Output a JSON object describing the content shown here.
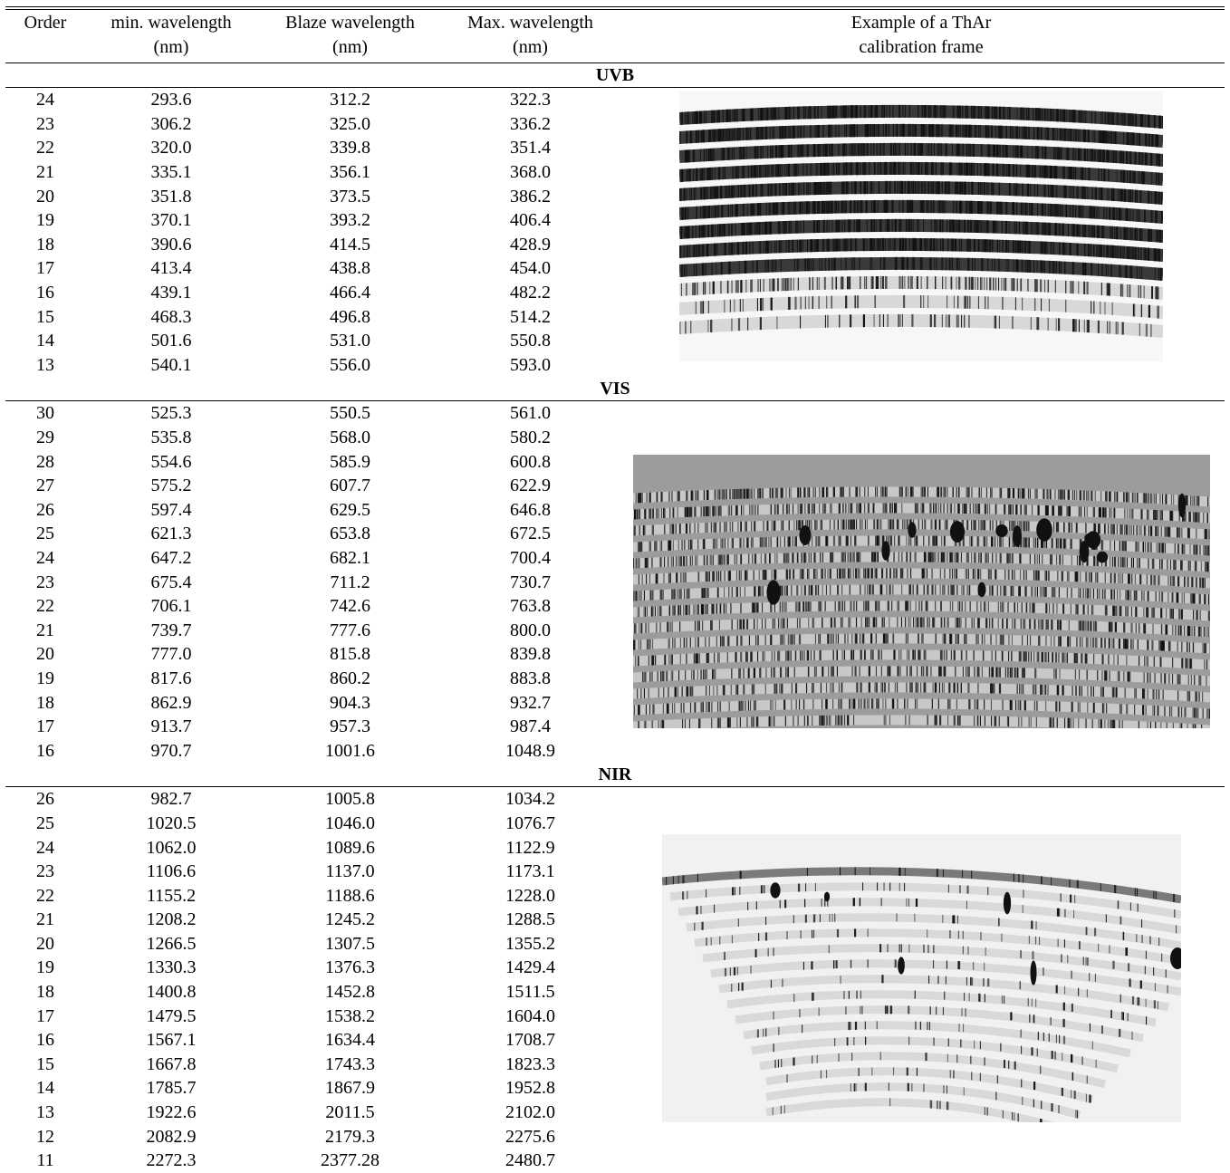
{
  "table": {
    "headers": {
      "order": "Order",
      "min_wavelength": [
        "min. wavelength",
        "(nm)"
      ],
      "blaze_wavelength": [
        "Blaze wavelength",
        "(nm)"
      ],
      "max_wavelength": [
        "Max. wavelength",
        "(nm)"
      ],
      "example": [
        "Example of a ThAr",
        "calibration frame"
      ]
    },
    "sections": [
      {
        "name": "UVB",
        "rows": [
          [
            "24",
            "293.6",
            "312.2",
            "322.3"
          ],
          [
            "23",
            "306.2",
            "325.0",
            "336.2"
          ],
          [
            "22",
            "320.0",
            "339.8",
            "351.4"
          ],
          [
            "21",
            "335.1",
            "356.1",
            "368.0"
          ],
          [
            "20",
            "351.8",
            "373.5",
            "386.2"
          ],
          [
            "19",
            "370.1",
            "393.2",
            "406.4"
          ],
          [
            "18",
            "390.6",
            "414.5",
            "428.9"
          ],
          [
            "17",
            "413.4",
            "438.8",
            "454.0"
          ],
          [
            "16",
            "439.1",
            "466.4",
            "482.2"
          ],
          [
            "15",
            "468.3",
            "496.8",
            "514.2"
          ],
          [
            "14",
            "501.6",
            "531.0",
            "550.8"
          ],
          [
            "13",
            "540.1",
            "556.0",
            "593.0"
          ]
        ]
      },
      {
        "name": "VIS",
        "rows": [
          [
            "30",
            "525.3",
            "550.5",
            "561.0"
          ],
          [
            "29",
            "535.8",
            "568.0",
            "580.2"
          ],
          [
            "28",
            "554.6",
            "585.9",
            "600.8"
          ],
          [
            "27",
            "575.2",
            "607.7",
            "622.9"
          ],
          [
            "26",
            "597.4",
            "629.5",
            "646.8"
          ],
          [
            "25",
            "621.3",
            "653.8",
            "672.5"
          ],
          [
            "24",
            "647.2",
            "682.1",
            "700.4"
          ],
          [
            "23",
            "675.4",
            "711.2",
            "730.7"
          ],
          [
            "22",
            "706.1",
            "742.6",
            "763.8"
          ],
          [
            "21",
            "739.7",
            "777.6",
            "800.0"
          ],
          [
            "20",
            "777.0",
            "815.8",
            "839.8"
          ],
          [
            "19",
            "817.6",
            "860.2",
            "883.8"
          ],
          [
            "18",
            "862.9",
            "904.3",
            "932.7"
          ],
          [
            "17",
            "913.7",
            "957.3",
            "987.4"
          ],
          [
            "16",
            "970.7",
            "1001.6",
            "1048.9"
          ]
        ]
      },
      {
        "name": "NIR",
        "rows": [
          [
            "26",
            "982.7",
            "1005.8",
            "1034.2"
          ],
          [
            "25",
            "1020.5",
            "1046.0",
            "1076.7"
          ],
          [
            "24",
            "1062.0",
            "1089.6",
            "1122.9"
          ],
          [
            "23",
            "1106.6",
            "1137.0",
            "1173.1"
          ],
          [
            "22",
            "1155.2",
            "1188.6",
            "1228.0"
          ],
          [
            "21",
            "1208.2",
            "1245.2",
            "1288.5"
          ],
          [
            "20",
            "1266.5",
            "1307.5",
            "1355.2"
          ],
          [
            "19",
            "1330.3",
            "1376.3",
            "1429.4"
          ],
          [
            "18",
            "1400.8",
            "1452.8",
            "1511.5"
          ],
          [
            "17",
            "1479.5",
            "1538.2",
            "1604.0"
          ],
          [
            "16",
            "1567.1",
            "1634.4",
            "1708.7"
          ],
          [
            "15",
            "1667.8",
            "1743.3",
            "1823.3"
          ],
          [
            "14",
            "1785.7",
            "1867.9",
            "1952.8"
          ],
          [
            "13",
            "1922.6",
            "2011.5",
            "2102.0"
          ],
          [
            "12",
            "2082.9",
            "2179.3",
            "2275.6"
          ],
          [
            "11",
            "2272.3",
            "2377.28",
            "2480.7"
          ]
        ]
      }
    ]
  },
  "frames": {
    "uvb": {
      "description_icon": "thar-uvb-frame-image",
      "orders": 12,
      "background": "#f7f7f7",
      "line_color": "#111111"
    },
    "vis": {
      "description_icon": "thar-vis-frame-image",
      "orders": 15,
      "background": "#9c9c9c",
      "line_color": "#111111"
    },
    "nir": {
      "description_icon": "thar-nir-frame-image",
      "orders": 16,
      "background": "#f1f1f1",
      "line_color": "#111111"
    }
  }
}
